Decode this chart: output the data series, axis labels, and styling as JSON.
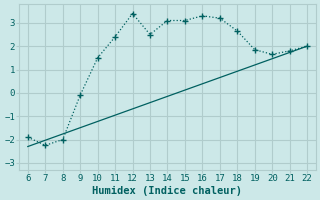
{
  "xlabel": "Humidex (Indice chaleur)",
  "background_color": "#cce8e8",
  "grid_color": "#b0cccc",
  "line_color": "#006060",
  "curve_x": [
    6,
    7,
    8,
    9,
    10,
    11,
    12,
    13,
    14,
    15,
    16,
    17,
    18,
    19,
    20,
    21,
    22
  ],
  "curve_y": [
    -1.9,
    -2.25,
    -2.0,
    -0.1,
    1.5,
    2.4,
    3.4,
    2.5,
    3.1,
    3.1,
    3.3,
    3.2,
    2.65,
    1.85,
    1.65,
    1.8,
    2.0
  ],
  "trend_x": [
    6,
    22
  ],
  "trend_y": [
    -2.3,
    2.0
  ],
  "xlim": [
    5.5,
    22.5
  ],
  "ylim": [
    -3.3,
    3.8
  ],
  "xticks": [
    6,
    7,
    8,
    9,
    10,
    11,
    12,
    13,
    14,
    15,
    16,
    17,
    18,
    19,
    20,
    21,
    22
  ],
  "yticks": [
    -3,
    -2,
    -1,
    0,
    1,
    2,
    3
  ],
  "fontsize_ticks": 6.5,
  "fontsize_label": 7.5
}
